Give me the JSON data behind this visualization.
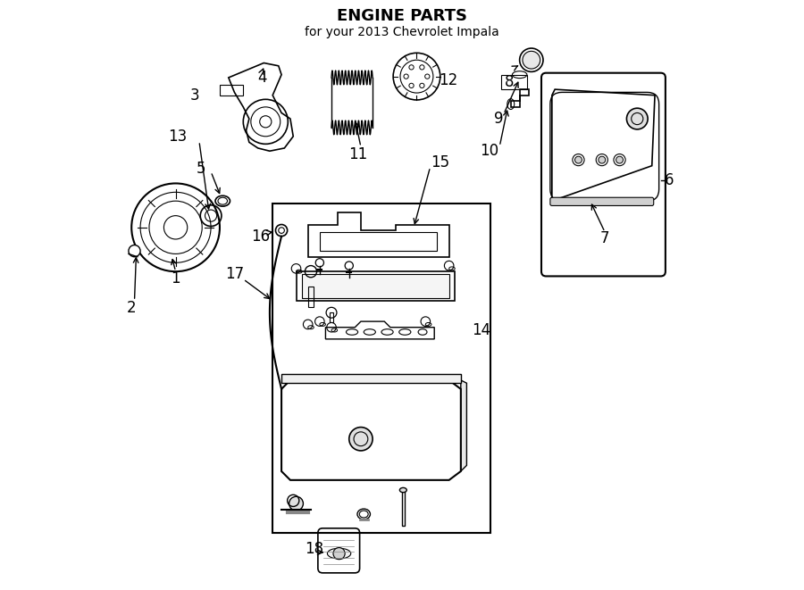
{
  "title": "ENGINE PARTS",
  "subtitle": "for your 2013 Chevrolet Impala",
  "bg_color": "#ffffff",
  "line_color": "#000000",
  "label_color": "#000000",
  "title_fontsize": 13,
  "subtitle_fontsize": 10,
  "label_fontsize": 12,
  "fig_width": 9.0,
  "fig_height": 6.61,
  "dpi": 100
}
